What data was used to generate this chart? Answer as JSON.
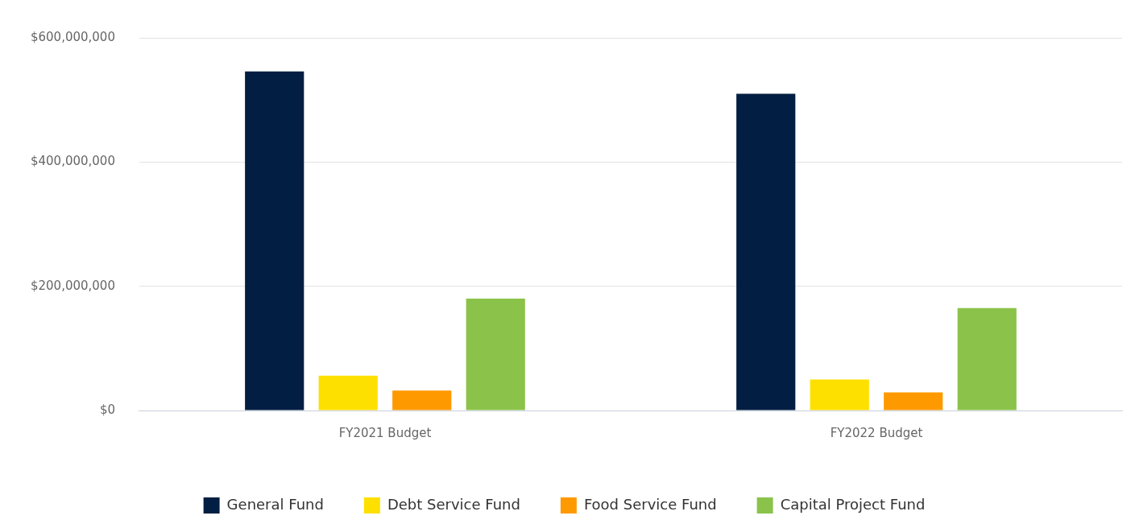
{
  "chart_data": {
    "type": "bar",
    "categories": [
      "FY2021 Budget",
      "FY2022 Budget"
    ],
    "series": [
      {
        "name": "General Fund",
        "color": "#021e42",
        "values": [
          546000000,
          510000000
        ]
      },
      {
        "name": "Debt Service Fund",
        "color": "#fde000",
        "values": [
          56000000,
          50000000
        ]
      },
      {
        "name": "Food Service Fund",
        "color": "#ff9900",
        "values": [
          32000000,
          29000000
        ]
      },
      {
        "name": "Capital Project Fund",
        "color": "#8bc34a",
        "values": [
          180000000,
          165000000
        ]
      }
    ],
    "ylim": [
      0,
      600000000
    ],
    "yticks": [
      {
        "value": 0,
        "label": "$0"
      },
      {
        "value": 200000000,
        "label": "$200,000,000"
      },
      {
        "value": 400000000,
        "label": "$400,000,000"
      },
      {
        "value": 600000000,
        "label": "$600,000,000"
      }
    ],
    "grid": "y",
    "legend": "bottom"
  }
}
